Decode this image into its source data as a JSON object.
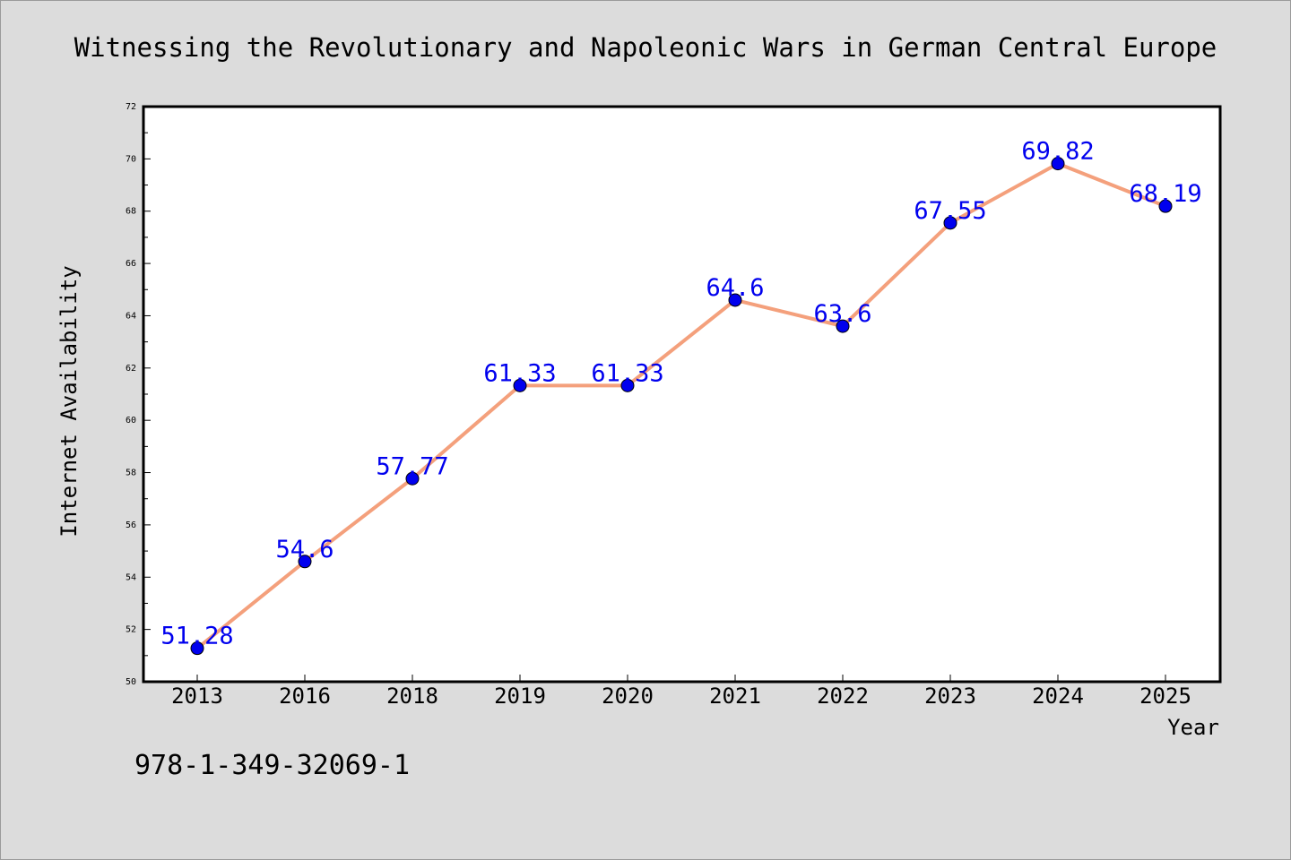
{
  "chart_data": {
    "type": "line",
    "title": "Witnessing the Revolutionary and Napoleonic Wars in German Central Europe",
    "xlabel": "Year",
    "ylabel": "Internet Availability",
    "categories": [
      "2013",
      "2016",
      "2018",
      "2019",
      "2020",
      "2021",
      "2022",
      "2023",
      "2024",
      "2025"
    ],
    "values": [
      51.28,
      54.6,
      57.77,
      61.33,
      61.33,
      64.6,
      63.6,
      67.55,
      69.82,
      68.19
    ],
    "data_labels": [
      "51.28",
      "54.6",
      "57.77",
      "61.33",
      "61.33",
      "64.6",
      "63.6",
      "67.55",
      "69.82",
      "68.19"
    ],
    "ylim": [
      50,
      72
    ],
    "yticks": [
      "50",
      "52",
      "54",
      "56",
      "58",
      "60",
      "62",
      "64",
      "66",
      "68",
      "70",
      "72"
    ],
    "grid": false,
    "legend": "none",
    "colors": {
      "line": "#f4a07c",
      "marker": "#0000ee",
      "label": "#0000ee",
      "background": "#dcdcdc",
      "plot_background": "#ffffff"
    }
  },
  "footer": {
    "isbn": "978-1-349-32069-1"
  }
}
